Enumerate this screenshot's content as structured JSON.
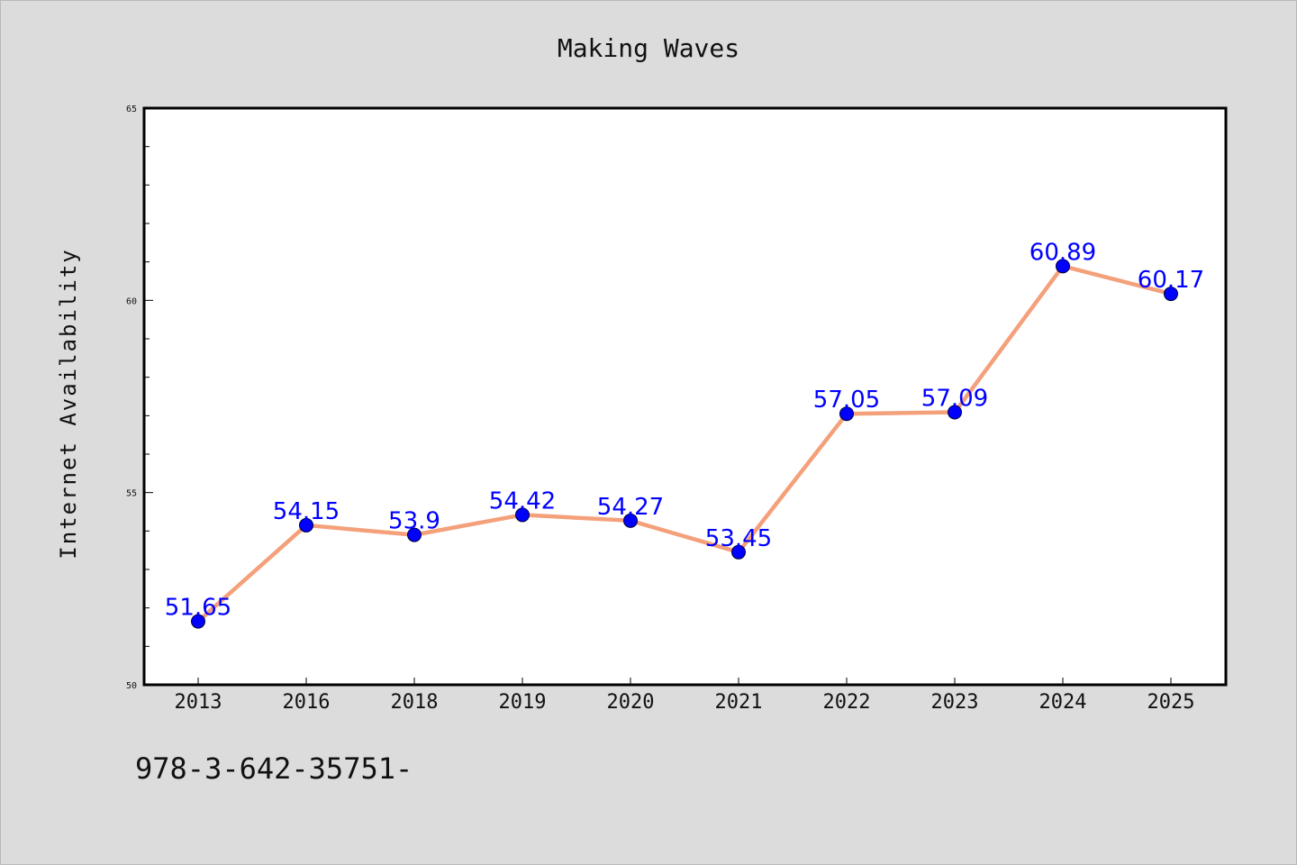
{
  "chart_data": {
    "type": "line",
    "title": "Making Waves",
    "xlabel": "",
    "ylabel": "Internet Availability",
    "categories": [
      "2013",
      "2016",
      "2018",
      "2019",
      "2020",
      "2021",
      "2022",
      "2023",
      "2024",
      "2025"
    ],
    "series": [
      {
        "values": [
          51.65,
          54.15,
          53.9,
          54.42,
          54.27,
          53.45,
          57.05,
          57.09,
          60.89,
          60.17
        ],
        "labels": [
          "51.65",
          "54.15",
          "53.9",
          "54.42",
          "54.27",
          "53.45",
          "57.05",
          "57.09",
          "60.89",
          "60.17"
        ],
        "line_color": "#f4a07a",
        "marker_color": "#0000ff",
        "label_color": "#0000ff"
      }
    ],
    "ylim": [
      50,
      65
    ],
    "y_ticks": [
      "50",
      "55",
      "60",
      "65"
    ],
    "grid": false,
    "legend": "none"
  },
  "footer": {
    "text": "978-3-642-35751-"
  },
  "colors": {
    "background": "#dcdcdc",
    "plot_background": "#ffffff",
    "axis": "#000000"
  }
}
